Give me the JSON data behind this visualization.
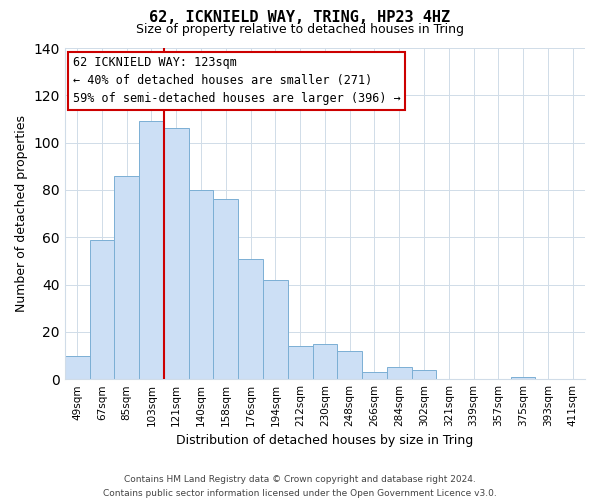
{
  "title": "62, ICKNIELD WAY, TRING, HP23 4HZ",
  "subtitle": "Size of property relative to detached houses in Tring",
  "xlabel": "Distribution of detached houses by size in Tring",
  "ylabel": "Number of detached properties",
  "bar_labels": [
    "49sqm",
    "67sqm",
    "85sqm",
    "103sqm",
    "121sqm",
    "140sqm",
    "158sqm",
    "176sqm",
    "194sqm",
    "212sqm",
    "230sqm",
    "248sqm",
    "266sqm",
    "284sqm",
    "302sqm",
    "321sqm",
    "339sqm",
    "357sqm",
    "375sqm",
    "393sqm",
    "411sqm"
  ],
  "bar_values": [
    10,
    59,
    86,
    109,
    106,
    80,
    76,
    51,
    42,
    14,
    15,
    12,
    3,
    5,
    4,
    0,
    0,
    0,
    1,
    0,
    0
  ],
  "bar_color": "#ccdff5",
  "bar_edge_color": "#7bafd4",
  "vline_color": "#cc0000",
  "vline_index": 3.5,
  "ylim": [
    0,
    140
  ],
  "yticks": [
    0,
    20,
    40,
    60,
    80,
    100,
    120,
    140
  ],
  "annotation_title": "62 ICKNIELD WAY: 123sqm",
  "annotation_line1": "← 40% of detached houses are smaller (271)",
  "annotation_line2": "59% of semi-detached houses are larger (396) →",
  "footer_line1": "Contains HM Land Registry data © Crown copyright and database right 2024.",
  "footer_line2": "Contains public sector information licensed under the Open Government Licence v3.0.",
  "background_color": "#ffffff",
  "grid_color": "#d0dce8",
  "title_fontsize": 11,
  "subtitle_fontsize": 9,
  "ylabel_fontsize": 9,
  "xlabel_fontsize": 9,
  "tick_fontsize": 7.5,
  "ann_fontsize": 8.5,
  "footer_fontsize": 6.5
}
